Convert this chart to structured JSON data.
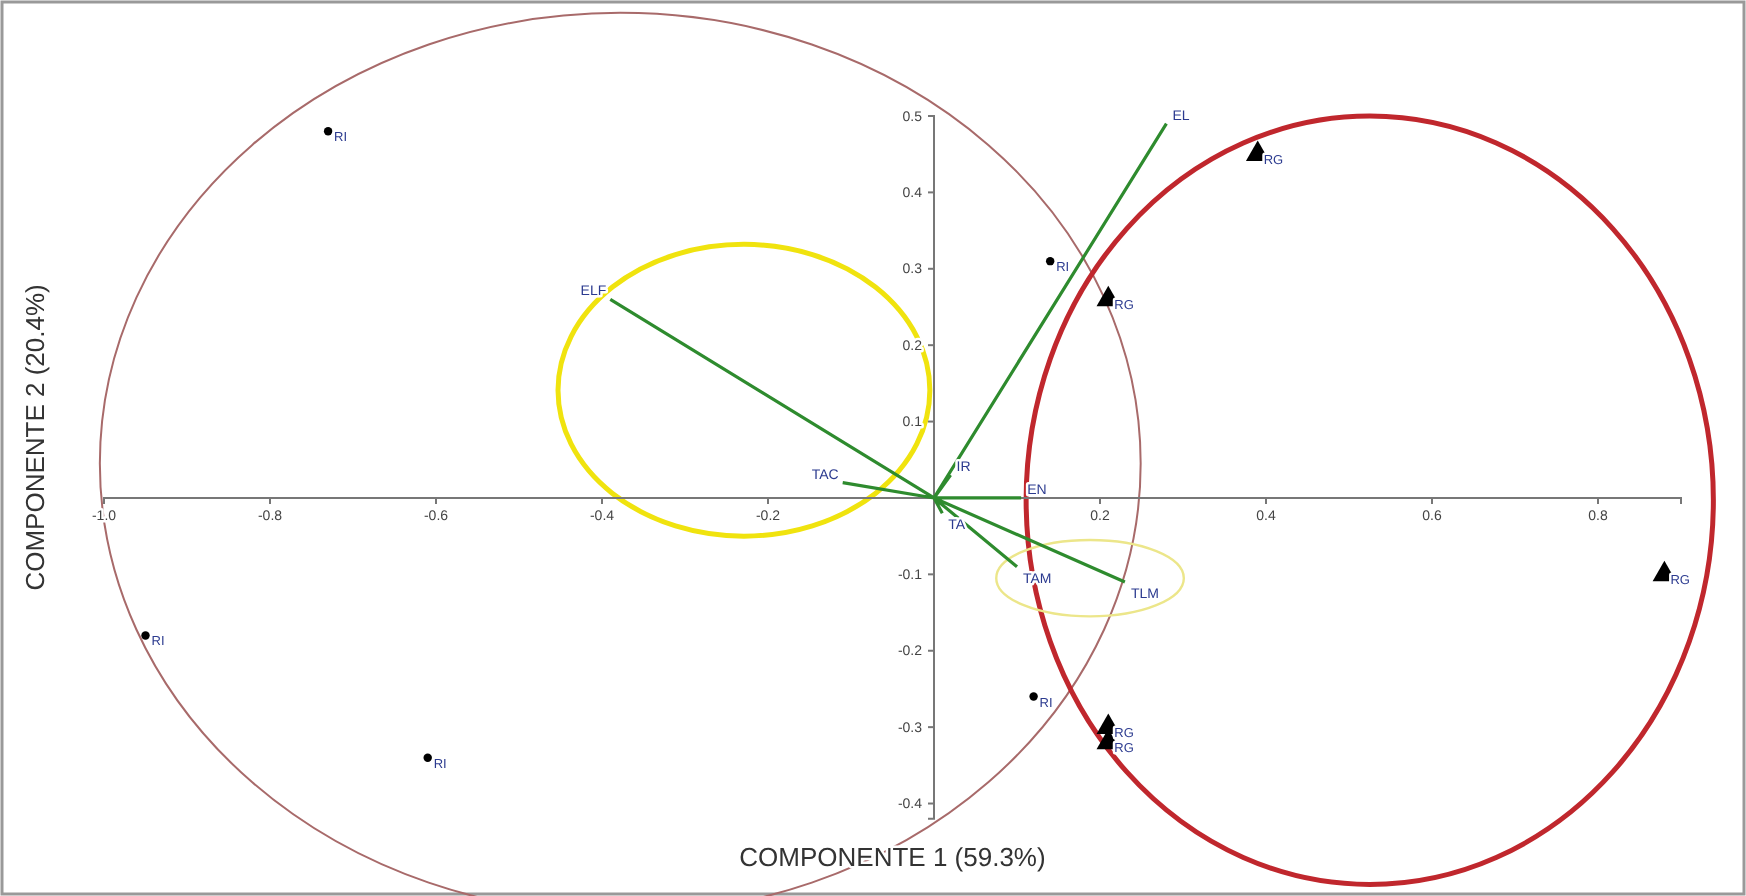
{
  "chart_data": {
    "type": "scatter",
    "xlabel": "COMPONENTE 1 (59.3%)",
    "ylabel": "COMPONENTE 2 (20.4%)",
    "xlim": [
      -1.0,
      0.9
    ],
    "ylim": [
      -0.42,
      0.5
    ],
    "xticks": [
      {
        "value": -1.0,
        "label": "-1.0"
      },
      -0.8,
      -0.6,
      -0.4,
      -0.2,
      0.2,
      0.4,
      0.6,
      0.8
    ],
    "yticks": [
      -0.4,
      -0.3,
      -0.2,
      -0.1,
      0.1,
      0.2,
      0.3,
      0.4,
      0.5
    ],
    "series": [
      {
        "name": "RI",
        "marker": "circle",
        "color": "#000000",
        "x": [
          -0.73,
          -0.95,
          -0.61,
          0.14,
          0.12
        ],
        "values": [
          0.48,
          -0.18,
          -0.34,
          0.31,
          -0.26
        ]
      },
      {
        "name": "RG",
        "marker": "triangle",
        "color": "#000000",
        "x": [
          0.39,
          0.21,
          0.88,
          0.21,
          0.21
        ],
        "values": [
          0.45,
          0.26,
          -0.1,
          -0.3,
          -0.32
        ]
      },
      {
        "type": "line",
        "color": "#2e8b2e",
        "x": [
          0,
          0.28,
          null,
          0,
          -0.39,
          null,
          0,
          -0.11,
          null,
          0,
          0.02,
          null,
          0,
          0.105,
          null,
          0,
          0.01,
          null,
          0,
          0.1,
          null,
          0,
          0.23
        ],
        "values": [
          0,
          0.49,
          null,
          0,
          0.26,
          null,
          0,
          0.02,
          null,
          0,
          0.03,
          null,
          0,
          0,
          null,
          0,
          -0.02,
          null,
          0,
          -0.09,
          null,
          0,
          -0.11
        ],
        "value_labels": [
          null,
          "EL",
          null,
          null,
          "ELF",
          null,
          null,
          "TAC",
          null,
          null,
          "IR",
          null,
          null,
          "EN",
          null,
          null,
          "TA",
          null,
          null,
          "TAM",
          null,
          null,
          "TLM"
        ]
      }
    ]
  }
}
